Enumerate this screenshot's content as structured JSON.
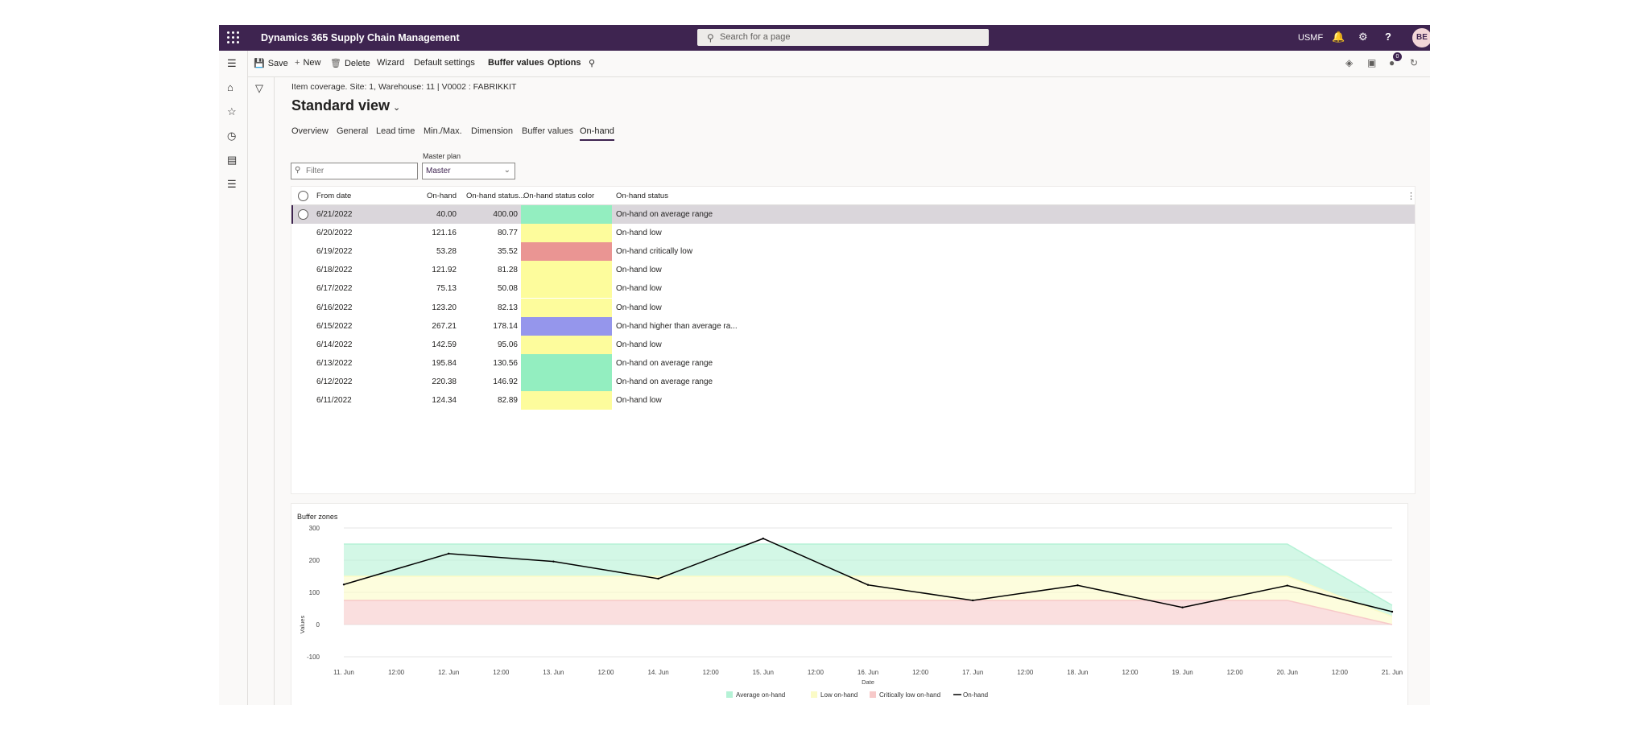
{
  "app": {
    "title": "Dynamics 365 Supply Chain Management",
    "search_placeholder": "Search for a page",
    "company": "USMF",
    "user_initials": "BE",
    "notification_count": "0"
  },
  "actions": {
    "save": "Save",
    "new": "New",
    "delete": "Delete",
    "wizard": "Wizard",
    "default_settings": "Default settings",
    "buffer_values": "Buffer values",
    "options": "Options"
  },
  "page": {
    "breadcrumb": "Item coverage. Site: 1, Warehouse: 11  |  V0002 : FABRIKKIT",
    "title": "Standard view"
  },
  "tabs": [
    "Overview",
    "General",
    "Lead time",
    "Min./Max.",
    "Dimension",
    "Buffer values",
    "On-hand"
  ],
  "active_tab": "On-hand",
  "filter": {
    "placeholder": "Filter",
    "master_plan_label": "Master plan",
    "master_plan_value": "Master"
  },
  "grid": {
    "columns": {
      "from_date": "From date",
      "on_hand": "On-hand",
      "on_hand_status_pct": "On-hand status...",
      "status_color": "On-hand status color",
      "status": "On-hand status"
    },
    "rows": [
      {
        "date": "6/21/2022",
        "onhand": "40.00",
        "pct": "400.00",
        "color": "#93eec0",
        "status": "On-hand on average range",
        "selected": true
      },
      {
        "date": "6/20/2022",
        "onhand": "121.16",
        "pct": "80.77",
        "color": "#fdfc9c",
        "status": "On-hand low"
      },
      {
        "date": "6/19/2022",
        "onhand": "53.28",
        "pct": "35.52",
        "color": "#ea9593",
        "status": "On-hand critically low"
      },
      {
        "date": "6/18/2022",
        "onhand": "121.92",
        "pct": "81.28",
        "color": "#fdfc9c",
        "status": "On-hand low"
      },
      {
        "date": "6/17/2022",
        "onhand": "75.13",
        "pct": "50.08",
        "color": "#fdfc9c",
        "status": "On-hand low"
      },
      {
        "date": "6/16/2022",
        "onhand": "123.20",
        "pct": "82.13",
        "color": "#fdfc9c",
        "status": "On-hand low"
      },
      {
        "date": "6/15/2022",
        "onhand": "267.21",
        "pct": "178.14",
        "color": "#9596ec",
        "status": "On-hand higher than average ra..."
      },
      {
        "date": "6/14/2022",
        "onhand": "142.59",
        "pct": "95.06",
        "color": "#fdfc9c",
        "status": "On-hand low"
      },
      {
        "date": "6/13/2022",
        "onhand": "195.84",
        "pct": "130.56",
        "color": "#93eec0",
        "status": "On-hand on average range"
      },
      {
        "date": "6/12/2022",
        "onhand": "220.38",
        "pct": "146.92",
        "color": "#93eec0",
        "status": "On-hand on average range"
      },
      {
        "date": "6/11/2022",
        "onhand": "124.34",
        "pct": "82.89",
        "color": "#fdfc9c",
        "status": "On-hand low"
      }
    ]
  },
  "chart_data": {
    "type": "area",
    "title": "Buffer zones",
    "xlabel": "Date",
    "ylabel": "Values",
    "ylim": [
      -100,
      300
    ],
    "yticks": [
      -100,
      0,
      100,
      200,
      300
    ],
    "x": [
      0,
      1,
      2,
      3,
      4,
      5,
      6,
      7,
      8,
      9,
      10
    ],
    "xticks": [
      "11. Jun",
      "12:00",
      "12. Jun",
      "12:00",
      "13. Jun",
      "12:00",
      "14. Jun",
      "12:00",
      "15. Jun",
      "12:00",
      "16. Jun",
      "12:00",
      "17. Jun",
      "12:00",
      "18. Jun",
      "12:00",
      "19. Jun",
      "12:00",
      "20. Jun",
      "12:00",
      "21. Jun"
    ],
    "series": [
      {
        "name": "Average on-hand",
        "color": "#b5f2d6",
        "top": [
          250,
          250,
          250,
          250,
          250,
          250,
          250,
          250,
          250,
          250,
          60
        ]
      },
      {
        "name": "Low on-hand",
        "color": "#fbfbc6",
        "top": [
          150,
          150,
          150,
          150,
          150,
          150,
          150,
          150,
          150,
          150,
          25
        ]
      },
      {
        "name": "Critically low on-hand",
        "color": "#f7c9c9",
        "top": [
          75,
          75,
          75,
          75,
          75,
          75,
          75,
          75,
          75,
          75,
          0
        ]
      },
      {
        "name": "On-hand",
        "color": "#000000",
        "values": [
          124.34,
          220.38,
          195.84,
          142.59,
          267.21,
          123.2,
          75.13,
          121.92,
          53.28,
          121.16,
          40
        ]
      }
    ],
    "legend": "bottom-center"
  }
}
